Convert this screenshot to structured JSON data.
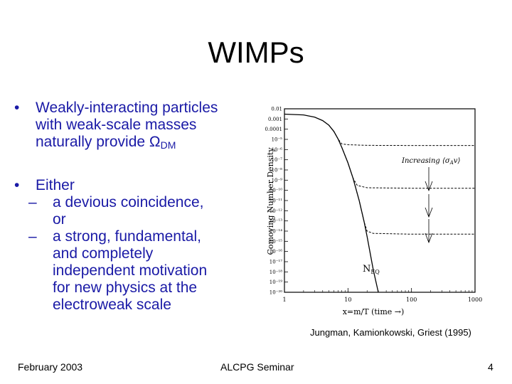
{
  "title": "WIMPs",
  "bullets": {
    "b1": {
      "marker": "•",
      "lines": [
        "Weakly-interacting particles",
        "with weak-scale masses",
        "naturally provide Ω"
      ],
      "subscript": "DM"
    },
    "b2": {
      "marker": "•",
      "label": "Either",
      "sub1": {
        "dash": "–",
        "lines": [
          "a devious coincidence,",
          "or"
        ]
      },
      "sub2": {
        "dash": "–",
        "lines": [
          "a strong, fundamental,",
          "and completely",
          "independent motivation",
          "for new physics at the",
          "electroweak scale"
        ]
      }
    }
  },
  "chart_data": {
    "type": "line",
    "ylabel": "Comoving Number Density",
    "xlabel": "x=m/T (time →)",
    "xscale": "log",
    "yscale": "log",
    "xlim": [
      1,
      1000
    ],
    "ylim": [
      1e-20,
      0.01
    ],
    "x_tick_labels": [
      "1",
      "10",
      "100",
      "1000"
    ],
    "y_tick_labels": [
      "0.01",
      "0.001",
      "0.0001",
      "10⁻⁵",
      "10⁻⁶",
      "10⁻⁷",
      "10⁻⁸",
      "10⁻⁹",
      "10⁻¹⁰",
      "10⁻¹¹",
      "10⁻¹²",
      "10⁻¹³",
      "10⁻¹⁴",
      "10⁻¹⁵",
      "10⁻¹⁶",
      "10⁻¹⁷",
      "10⁻¹⁸",
      "10⁻¹⁹",
      "10⁻²⁰"
    ],
    "annotations": {
      "increasing": "Increasing ⟨σ",
      "increasing_sub": "A",
      "increasing_end": "v⟩",
      "neq": "N",
      "neq_sub": "EQ"
    },
    "series": [
      {
        "style": "solid",
        "x": [
          1,
          2,
          3,
          4,
          5,
          6,
          7,
          8,
          10,
          12,
          15,
          18,
          20,
          25,
          30
        ],
        "y": [
          0.003,
          0.0025,
          0.0015,
          0.0007,
          0.00025,
          6e-05,
          1.06e-05,
          1.6e-06,
          5e-08,
          1.6e-09,
          1e-11,
          8e-14,
          3e-15,
          1.6e-18,
          1e-20
        ]
      },
      {
        "style": "dashed",
        "x": [
          5,
          6,
          7,
          8,
          10,
          20,
          100,
          1000
        ],
        "y": [
          0.00025,
          6e-05,
          1.06e-05,
          3.6e-06,
          3e-06,
          2.6e-06,
          2.5e-06,
          2.5e-06
        ]
      },
      {
        "style": "dashed",
        "x": [
          8,
          10,
          12,
          14,
          20,
          100,
          1000
        ],
        "y": [
          1.6e-06,
          5e-08,
          1.6e-09,
          3e-10,
          1.8e-10,
          1.6e-10,
          1.6e-10
        ]
      },
      {
        "style": "dashed",
        "x": [
          12,
          15,
          18,
          20,
          25,
          100,
          1000
        ],
        "y": [
          1.6e-09,
          1e-11,
          8e-14,
          1e-14,
          6e-15,
          5e-15,
          5e-15
        ]
      }
    ]
  },
  "caption": "Jungman, Kamionkowski, Griest (1995)",
  "footer": {
    "date": "February 2003",
    "event": "ALCPG Seminar",
    "page": "4"
  }
}
